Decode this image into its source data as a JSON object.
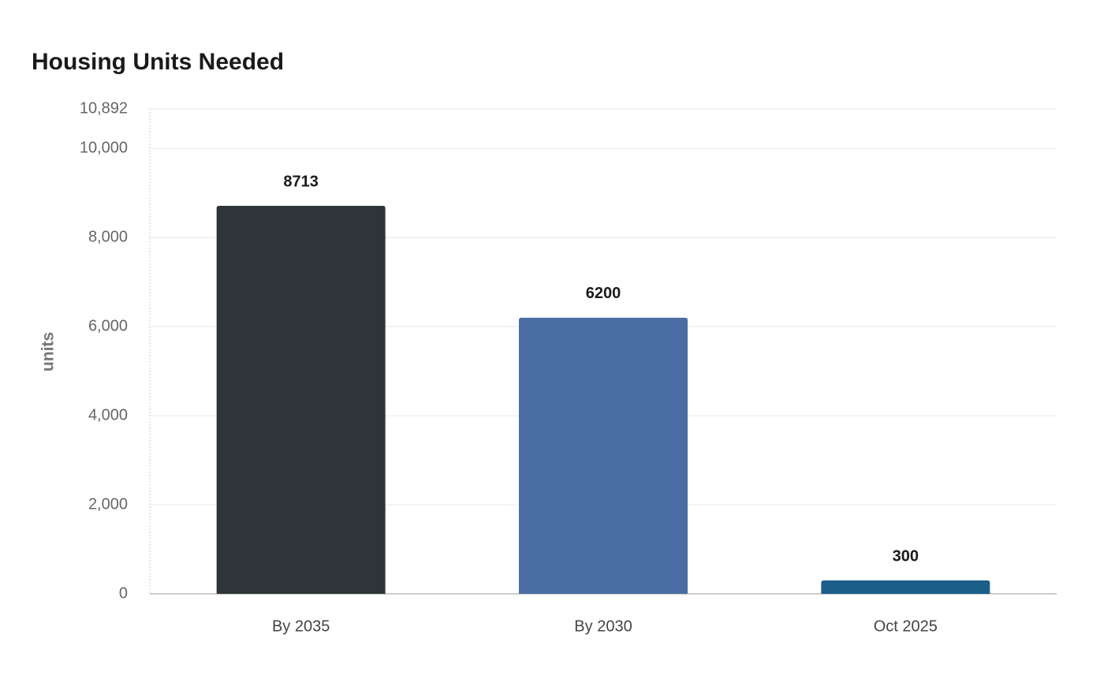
{
  "chart_data": {
    "type": "bar",
    "title": "Housing Units Needed",
    "y_label": "units",
    "categories": [
      "By 2035",
      "By 2030",
      "Oct 2025"
    ],
    "values": [
      8713,
      6200,
      300
    ],
    "colors": [
      "#2e3538",
      "#4a6ea3",
      "#1a5e89"
    ],
    "ylim": [
      0,
      10892
    ],
    "yticks": [
      0,
      {
        "value": 2000,
        "label": "2,000"
      },
      {
        "value": 4000,
        "label": "4,000"
      },
      {
        "value": 6000,
        "label": "6,000"
      },
      {
        "value": 8000,
        "label": "8,000"
      },
      {
        "value": 10000,
        "label": "10,000"
      },
      {
        "value": 10892,
        "label": "10,892"
      }
    ],
    "grid": true
  }
}
